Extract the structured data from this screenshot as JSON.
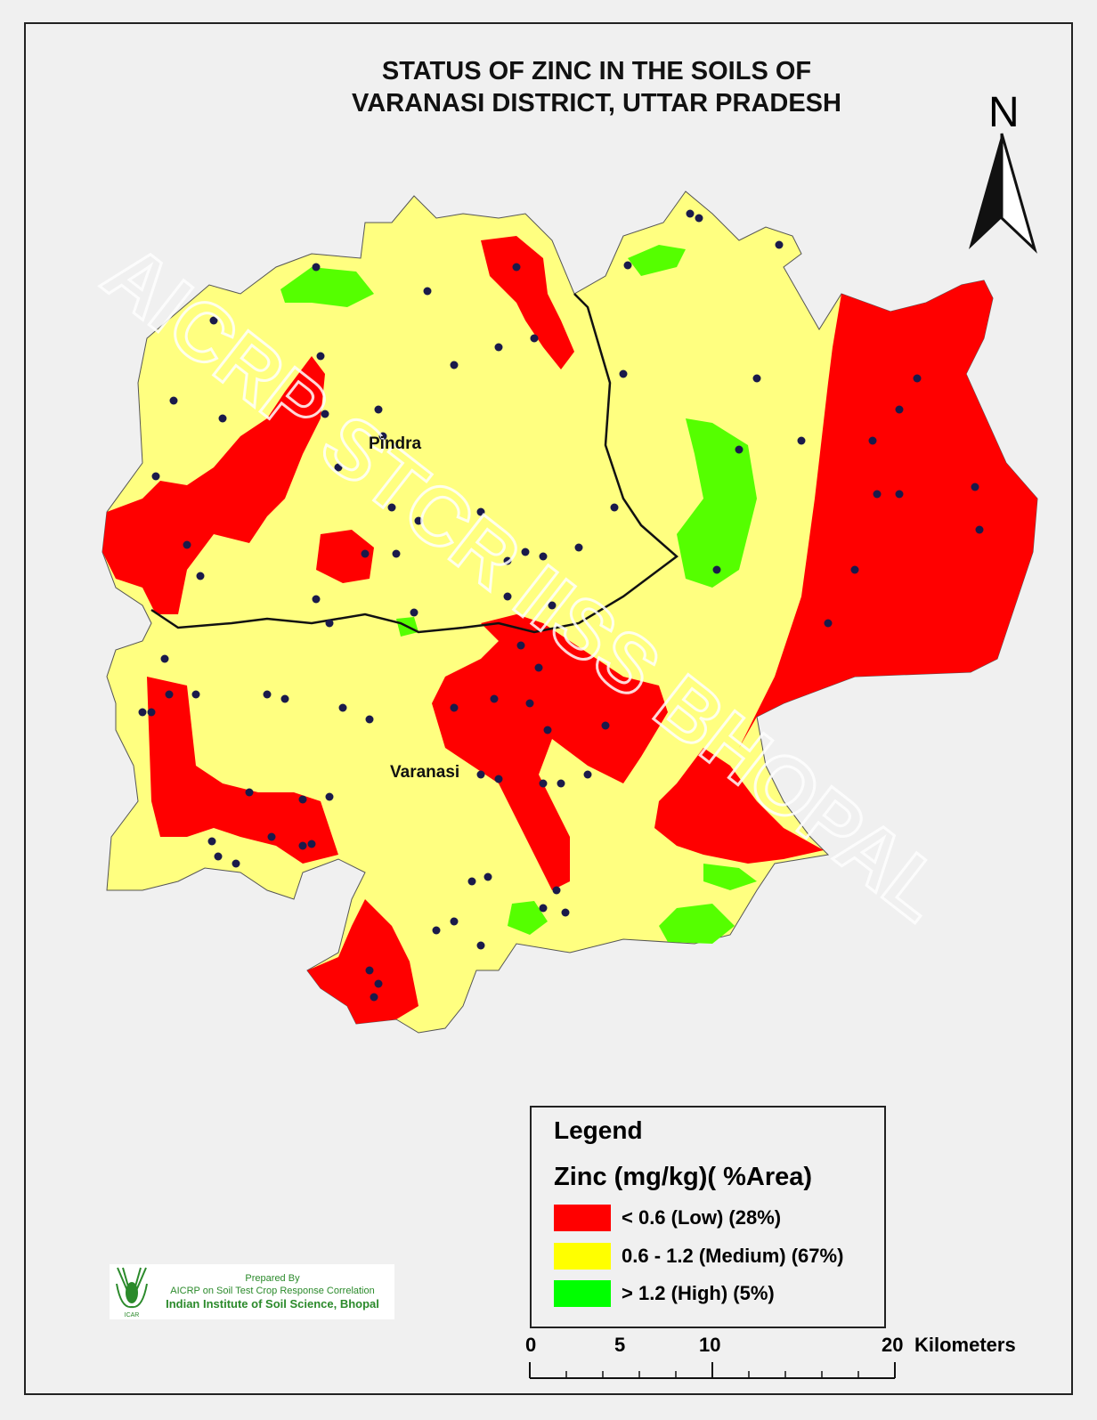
{
  "title": {
    "line1": "STATUS OF ZINC  IN THE  SOILS OF",
    "line2": "VARANASI  DISTRICT, UTTAR PRADESH"
  },
  "north_arrow": {
    "label": "N",
    "icon": "north-arrow-icon"
  },
  "places": [
    {
      "name": "Pindra"
    },
    {
      "name": "Varanasi"
    }
  ],
  "watermark": "AICRP STCR IISS BHOPAL",
  "legend": {
    "title": "Legend",
    "subtitle": "Zinc  (mg/kg)( %Area)",
    "items": [
      {
        "label": "< 0.6 (Low) (28%)",
        "color": "#ff0000"
      },
      {
        "label": "0.6 - 1.2 (Medium) (67%)",
        "color": "#ffff00"
      },
      {
        "label": "> 1.2 (High) (5%)",
        "color": "#00ff00"
      }
    ]
  },
  "map_colors": {
    "low": "#ff0000",
    "medium": "#ffff80",
    "high": "#55ff00",
    "sample_point": "#1a1a4a"
  },
  "scale_bar": {
    "ticks": [
      "0",
      "5",
      "10",
      "20"
    ],
    "unit": "Kilometers"
  },
  "credit": {
    "line1": "Prepared By",
    "line2": "AICRP on Soil Test Crop Response Correlation",
    "line3": "Indian Institute of Soil Science, Bhopal",
    "logo_text": "ICAR"
  }
}
